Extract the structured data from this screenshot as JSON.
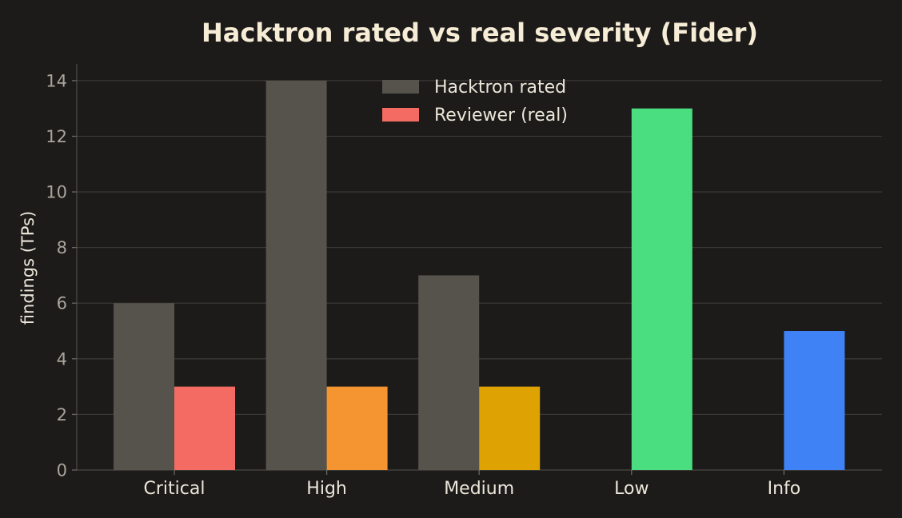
{
  "chart_data": {
    "type": "bar",
    "title": "Hacktron rated vs real severity (Fider)",
    "xlabel": "",
    "ylabel": "findings (TPs)",
    "categories": [
      "Critical",
      "High",
      "Medium",
      "Low",
      "Info"
    ],
    "series": [
      {
        "name": "Hacktron rated",
        "values": [
          6,
          14,
          7,
          0,
          0
        ],
        "color": "#56534d"
      },
      {
        "name": "Reviewer (real)",
        "values": [
          3,
          3,
          3,
          13,
          5
        ],
        "colors": [
          "#f36b62",
          "#f49531",
          "#dfa203",
          "#4ade80",
          "#3f82f6"
        ]
      }
    ],
    "ylim": [
      0,
      14.6
    ],
    "yticks": [
      0,
      2,
      4,
      6,
      8,
      10,
      12,
      14
    ],
    "grid": true,
    "legend_placement": "top-center",
    "colors": {
      "background": "#1c1b19",
      "title": "#f7ecd6",
      "text": "#ece6da",
      "tick_text": "#a9a59c",
      "grid": "#3a3835",
      "legend_reviewer_swatch": "#f36b62"
    }
  }
}
